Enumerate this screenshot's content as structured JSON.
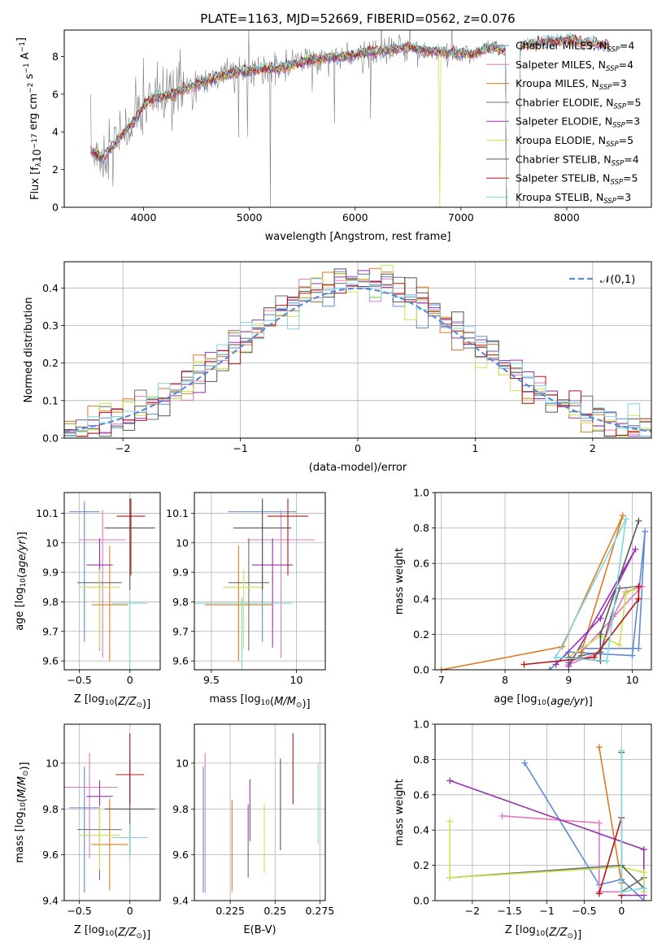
{
  "page": {
    "title": "PLATE=1163, MJD=52669, FIBERID=0562, z=0.076"
  },
  "colors": {
    "Chabrier MILES": "#5b8bd8",
    "Salpeter MILES": "#e377c2",
    "Kroupa MILES": "#e07a1f",
    "Chabrier ELODIE": "#6d6d6d",
    "Salpeter ELODIE": "#9b30b0",
    "Kroupa ELODIE": "#c8e64a",
    "Chabrier STELIB": "#555555",
    "Salpeter STELIB": "#b81414",
    "Kroupa STELIB": "#7fd8e0",
    "data": "#808080",
    "normal": "#5b8bd8"
  },
  "chart_data": [
    {
      "id": "spectrum",
      "type": "line",
      "title": "PLATE=1163, MJD=52669, FIBERID=0562, z=0.076",
      "xlabel": "wavelength [Angstrom, rest frame]",
      "ylabel": "Flux [f_λ 10^-17 erg cm^-2 s^-1 A^-1]",
      "xlim": [
        3250,
        8800
      ],
      "ylim": [
        0,
        9.4
      ],
      "xticks": [
        4000,
        5000,
        6000,
        7000,
        8000
      ],
      "yticks": [
        0,
        2,
        4,
        6,
        8
      ],
      "grid": false,
      "legend_position": "upper right",
      "legend": [
        "Chabrier MILES, N_SSP=4",
        "Salpeter MILES, N_SSP=4",
        "Kroupa MILES, N_SSP=3",
        "Chabrier ELODIE, N_SSP=5",
        "Salpeter ELODIE, N_SSP=3",
        "Kroupa ELODIE, N_SSP=5",
        "Chabrier STELIB, N_SSP=4",
        "Salpeter STELIB, N_SSP=5",
        "Kroupa STELIB, N_SSP=3"
      ],
      "continuum": {
        "x": [
          3500,
          3600,
          3700,
          3800,
          3900,
          4000,
          4100,
          4200,
          4300,
          4500,
          4700,
          4900,
          5100,
          5300,
          5500,
          5700,
          5900,
          6100,
          6300,
          6500,
          6700,
          6900,
          7100,
          7300,
          7400,
          7600,
          7800,
          8000,
          8200,
          8400
        ],
        "y": [
          3.0,
          2.6,
          3.1,
          3.9,
          4.5,
          5.4,
          5.8,
          5.9,
          6.1,
          6.5,
          6.9,
          7.2,
          7.3,
          7.4,
          7.7,
          7.9,
          8.0,
          8.2,
          8.3,
          8.5,
          8.3,
          8.2,
          8.1,
          8.5,
          8.3,
          8.6,
          8.8,
          8.9,
          8.7,
          8.6
        ]
      }
    },
    {
      "id": "residuals",
      "type": "histogram",
      "xlabel": "(data-model)/error",
      "ylabel": "Normed distribution",
      "xlim": [
        -2.5,
        2.5
      ],
      "ylim": [
        0,
        0.47
      ],
      "xticks": [
        -2,
        -1,
        0,
        1,
        2
      ],
      "yticks": [
        0.0,
        0.1,
        0.2,
        0.3,
        0.4
      ],
      "grid": true,
      "legend_position": "upper right",
      "reference_label": "𝒩(0,1)",
      "bin_width": 0.1,
      "reference": "normal(0,1)"
    },
    {
      "id": "age_vs_Z",
      "type": "errorbar",
      "xlabel": "Z [log10(Z/Z☉)]",
      "ylabel": "age [log10(age/yr)]",
      "xlim": [
        -0.65,
        0.3
      ],
      "ylim": [
        9.57,
        10.17
      ],
      "xticks": [
        -0.5,
        0.0
      ],
      "yticks": [
        9.6,
        9.7,
        9.8,
        9.9,
        10.0,
        10.1
      ],
      "grid": true,
      "points": [
        {
          "series": "Chabrier MILES",
          "x": -0.45,
          "xerr": 0.15,
          "y": 10.105,
          "yerr": [
            0.44,
            0.035
          ]
        },
        {
          "series": "Salpeter MILES",
          "x": -0.27,
          "xerr": 0.23,
          "y": 10.01,
          "yerr": [
            0.4,
            0.1
          ]
        },
        {
          "series": "Kroupa MILES",
          "x": -0.2,
          "xerr": 0.18,
          "y": 9.79,
          "yerr": [
            0.19,
            0.2
          ]
        },
        {
          "series": "Chabrier ELODIE",
          "x": -0.3,
          "xerr": 0.22,
          "y": 9.865,
          "yerr": [
            0.23,
            0.15
          ]
        },
        {
          "series": "Salpeter ELODIE",
          "x": -0.3,
          "xerr": 0.13,
          "y": 9.925,
          "yerr": [
            0.28,
            0.09
          ]
        },
        {
          "series": "Kroupa ELODIE",
          "x": -0.3,
          "xerr": 0.2,
          "y": 9.85,
          "yerr": [
            0.21,
            0.06
          ]
        },
        {
          "series": "Chabrier STELIB",
          "x": 0.0,
          "xerr": 0.25,
          "y": 10.05,
          "yerr": [
            0.21,
            0.1
          ]
        },
        {
          "series": "Salpeter STELIB",
          "x": 0.01,
          "xerr": 0.14,
          "y": 10.09,
          "yerr": [
            0.2,
            0.06
          ]
        },
        {
          "series": "Kroupa STELIB",
          "x": 0.0,
          "xerr": 0.18,
          "y": 9.795,
          "yerr": [
            0.25,
            0.02
          ]
        }
      ]
    },
    {
      "id": "age_vs_mass",
      "type": "errorbar",
      "xlabel": "mass [log10(M/M☉)]",
      "ylabel": "",
      "xlim": [
        9.4,
        10.17
      ],
      "ylim": [
        9.57,
        10.17
      ],
      "xticks": [
        9.5,
        10.0
      ],
      "yticks": [
        9.6,
        9.7,
        9.8,
        9.9,
        10.0,
        10.1
      ],
      "grid": true,
      "points": [
        {
          "series": "Chabrier MILES",
          "x": 9.8,
          "xerr": 0.2,
          "y": 10.105,
          "yerr": [
            0.44,
            0.035
          ]
        },
        {
          "series": "Salpeter MILES",
          "x": 9.91,
          "xerr": 0.2,
          "y": 10.01,
          "yerr": [
            0.4,
            0.1
          ]
        },
        {
          "series": "Kroupa MILES",
          "x": 9.66,
          "xerr": 0.2,
          "y": 9.79,
          "yerr": [
            0.19,
            0.2
          ]
        },
        {
          "series": "Chabrier ELODIE",
          "x": 9.72,
          "xerr": 0.12,
          "y": 9.865,
          "yerr": [
            0.23,
            0.15
          ]
        },
        {
          "series": "Salpeter ELODIE",
          "x": 9.86,
          "xerr": 0.12,
          "y": 9.925,
          "yerr": [
            0.28,
            0.09
          ]
        },
        {
          "series": "Kroupa ELODIE",
          "x": 9.69,
          "xerr": 0.12,
          "y": 9.85,
          "yerr": [
            0.21,
            0.06
          ]
        },
        {
          "series": "Chabrier STELIB",
          "x": 9.8,
          "xerr": 0.17,
          "y": 10.05,
          "yerr": [
            0.21,
            0.1
          ]
        },
        {
          "series": "Salpeter STELIB",
          "x": 9.95,
          "xerr": 0.12,
          "y": 10.09,
          "yerr": [
            0.2,
            0.06
          ]
        },
        {
          "series": "Kroupa STELIB",
          "x": 9.68,
          "xerr": 0.3,
          "y": 9.795,
          "yerr": [
            0.25,
            0.02
          ]
        }
      ]
    },
    {
      "id": "massweight_vs_age",
      "type": "line",
      "xlabel": "age [log10(age/yr)]",
      "ylabel": "mass weight",
      "xlim": [
        6.9,
        10.3
      ],
      "ylim": [
        0,
        1.0
      ],
      "xticks": [
        7,
        8,
        9,
        10
      ],
      "yticks": [
        0.0,
        0.2,
        0.4,
        0.6,
        0.8,
        1.0
      ],
      "grid": true,
      "series": [
        {
          "name": "Chabrier MILES",
          "x": [
            8.7,
            9.0,
            10.0,
            10.2,
            10.1,
            9.2
          ],
          "y": [
            0.0,
            0.1,
            0.08,
            0.78,
            0.12,
            0.12
          ]
        },
        {
          "name": "Salpeter MILES",
          "x": [
            9.0,
            9.5,
            9.7,
            9.9,
            10.15,
            9.2
          ],
          "y": [
            0.03,
            0.1,
            0.3,
            0.44,
            0.47,
            0.1
          ]
        },
        {
          "name": "Kroupa MILES",
          "x": [
            7.0,
            8.9,
            9.85,
            9.2
          ],
          "y": [
            0.0,
            0.13,
            0.87,
            0.1
          ]
        },
        {
          "name": "Chabrier ELODIE",
          "x": [
            9.0,
            9.2,
            9.5,
            9.8,
            10.1
          ],
          "y": [
            0.04,
            0.08,
            0.1,
            0.46,
            0.47
          ]
        },
        {
          "name": "Salpeter ELODIE",
          "x": [
            8.8,
            9.5,
            10.05,
            9.0
          ],
          "y": [
            0.03,
            0.29,
            0.68,
            0.02
          ]
        },
        {
          "name": "Kroupa ELODIE",
          "x": [
            9.0,
            9.5,
            9.8,
            9.9,
            10.0
          ],
          "y": [
            0.07,
            0.19,
            0.14,
            0.43,
            0.45
          ]
        },
        {
          "name": "Chabrier STELIB",
          "x": [
            9.0,
            9.5,
            9.5,
            10.1
          ],
          "y": [
            0.07,
            0.05,
            0.2,
            0.84
          ]
        },
        {
          "name": "Salpeter STELIB",
          "x": [
            8.3,
            9.4,
            10.1,
            10.1
          ],
          "y": [
            0.03,
            0.07,
            0.4,
            0.47
          ]
        },
        {
          "name": "Kroupa STELIB",
          "x": [
            8.8,
            9.6,
            9.9,
            8.8
          ],
          "y": [
            0.07,
            0.05,
            0.85,
            0.07
          ]
        }
      ]
    },
    {
      "id": "mass_vs_Z",
      "type": "errorbar",
      "xlabel": "Z [log10(Z/Z☉)]",
      "ylabel": "mass [log10(M/M☉)]",
      "xlim": [
        -0.65,
        0.3
      ],
      "ylim": [
        9.4,
        10.17
      ],
      "xticks": [
        -0.5,
        0.0
      ],
      "yticks": [
        9.4,
        9.6,
        9.8,
        10.0
      ],
      "grid": true,
      "points": [
        {
          "series": "Chabrier MILES",
          "x": -0.45,
          "xerr": 0.15,
          "y": 9.805,
          "yerr": [
            0.37,
            0.18
          ]
        },
        {
          "series": "Salpeter MILES",
          "x": -0.4,
          "xerr": 0.28,
          "y": 9.895,
          "yerr": [
            0.31,
            0.15
          ]
        },
        {
          "series": "Kroupa MILES",
          "x": -0.2,
          "xerr": 0.18,
          "y": 9.645,
          "yerr": [
            0.2,
            0.2
          ]
        },
        {
          "series": "Chabrier ELODIE",
          "x": -0.3,
          "xerr": 0.22,
          "y": 9.71,
          "yerr": [
            0.22,
            0.13
          ]
        },
        {
          "series": "Salpeter ELODIE",
          "x": -0.3,
          "xerr": 0.13,
          "y": 9.855,
          "yerr": [
            0.2,
            0.07
          ]
        },
        {
          "series": "Kroupa ELODIE",
          "x": -0.3,
          "xerr": 0.2,
          "y": 9.685,
          "yerr": [
            0.15,
            0.13
          ]
        },
        {
          "series": "Chabrier STELIB",
          "x": 0.0,
          "xerr": 0.25,
          "y": 9.8,
          "yerr": [
            0.2,
            0.22
          ]
        },
        {
          "series": "Salpeter STELIB",
          "x": 0.0,
          "xerr": 0.14,
          "y": 9.95,
          "yerr": [
            0.13,
            0.18
          ]
        },
        {
          "series": "Kroupa STELIB",
          "x": 0.0,
          "xerr": 0.18,
          "y": 9.675,
          "yerr": [
            0.09,
            0.06
          ]
        }
      ]
    },
    {
      "id": "mass_vs_ebv",
      "type": "errorbar",
      "xlabel": "E(B-V)",
      "ylabel": "",
      "xlim": [
        0.205,
        0.278
      ],
      "ylim": [
        9.4,
        10.17
      ],
      "xticks": [
        0.225,
        0.25,
        0.275
      ],
      "yticks": [
        9.4,
        9.6,
        9.8,
        10.0
      ],
      "grid": true,
      "points": [
        {
          "series": "Chabrier MILES",
          "x": 0.21,
          "xerr": 0,
          "y": 9.805,
          "yerr": [
            0.37,
            0.18
          ]
        },
        {
          "series": "Salpeter MILES",
          "x": 0.211,
          "xerr": 0,
          "y": 9.745,
          "yerr": [
            0.31,
            0.3
          ]
        },
        {
          "series": "Kroupa MILES",
          "x": 0.226,
          "xerr": 0,
          "y": 9.64,
          "yerr": [
            0.2,
            0.2
          ]
        },
        {
          "series": "Chabrier ELODIE",
          "x": 0.235,
          "xerr": 0,
          "y": 9.72,
          "yerr": [
            0.22,
            0.1
          ]
        },
        {
          "series": "Salpeter ELODIE",
          "x": 0.236,
          "xerr": 0,
          "y": 9.86,
          "yerr": [
            0.2,
            0.07
          ]
        },
        {
          "series": "Kroupa ELODIE",
          "x": 0.244,
          "xerr": 0,
          "y": 9.67,
          "yerr": [
            0.15,
            0.15
          ]
        },
        {
          "series": "Chabrier STELIB",
          "x": 0.253,
          "xerr": 0,
          "y": 9.82,
          "yerr": [
            0.2,
            0.2
          ]
        },
        {
          "series": "Salpeter STELIB",
          "x": 0.26,
          "xerr": 0,
          "y": 9.95,
          "yerr": [
            0.13,
            0.18
          ]
        },
        {
          "series": "Kroupa STELIB",
          "x": 0.274,
          "xerr": 0,
          "y": 9.82,
          "yerr": [
            0.17,
            0.18
          ]
        }
      ]
    },
    {
      "id": "massweight_vs_Z",
      "type": "line",
      "xlabel": "Z [log10(Z/Z☉)]",
      "ylabel": "mass weight",
      "xlim": [
        -2.5,
        0.4
      ],
      "ylim": [
        0,
        1.0
      ],
      "xticks": [
        -2.0,
        -1.5,
        -1.0,
        -0.5,
        0.0
      ],
      "yticks": [
        0.0,
        0.2,
        0.4,
        0.6,
        0.8,
        1.0
      ],
      "grid": true,
      "series": [
        {
          "name": "Chabrier MILES",
          "x": [
            -1.3,
            -0.3,
            0.0,
            0.3
          ],
          "y": [
            0.78,
            0.09,
            0.12,
            0.0
          ]
        },
        {
          "name": "Salpeter MILES",
          "x": [
            -1.6,
            -0.3,
            -0.3,
            0.0
          ],
          "y": [
            0.48,
            0.44,
            0.05,
            0.05
          ]
        },
        {
          "name": "Kroupa MILES",
          "x": [
            -0.3,
            0.0,
            0.0
          ],
          "y": [
            0.87,
            0.1,
            0.03
          ]
        },
        {
          "name": "Chabrier ELODIE",
          "x": [
            -2.3,
            0.0,
            0.0,
            0.3
          ],
          "y": [
            0.13,
            0.2,
            0.05,
            0.13
          ]
        },
        {
          "name": "Salpeter ELODIE",
          "x": [
            -2.3,
            0.3,
            0.3,
            0.0
          ],
          "y": [
            0.68,
            0.29,
            0.03,
            0.03
          ]
        },
        {
          "name": "Kroupa ELODIE",
          "x": [
            -2.3,
            -2.3,
            0.0,
            0.3,
            0.3
          ],
          "y": [
            0.45,
            0.13,
            0.19,
            0.16,
            0.05
          ]
        },
        {
          "name": "Chabrier STELIB",
          "x": [
            0.0,
            0.0,
            0.3
          ],
          "y": [
            0.84,
            0.2,
            0.07
          ]
        },
        {
          "name": "Salpeter STELIB",
          "x": [
            -0.3,
            0.0,
            0.0
          ],
          "y": [
            0.04,
            0.47,
            0.03
          ]
        },
        {
          "name": "Kroupa STELIB",
          "x": [
            0.0,
            0.0,
            0.3
          ],
          "y": [
            0.85,
            0.05,
            0.07
          ]
        }
      ]
    }
  ]
}
